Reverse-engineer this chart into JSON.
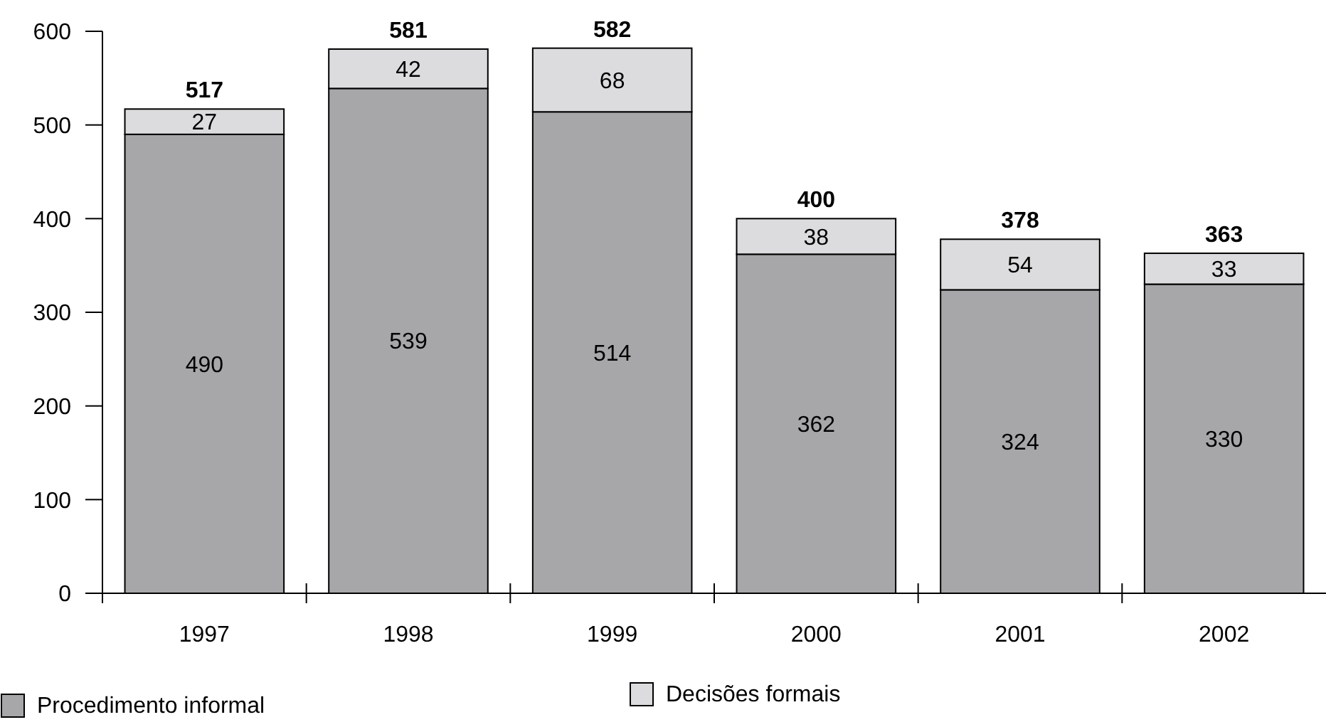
{
  "chart_data": {
    "type": "bar",
    "stacked": true,
    "categories": [
      "1997",
      "1998",
      "1999",
      "2000",
      "2001",
      "2002"
    ],
    "series": [
      {
        "name": "Procedimento informal",
        "color": "#a7a7aa",
        "values": [
          490,
          539,
          514,
          362,
          324,
          330
        ]
      },
      {
        "name": "Decisões formais",
        "color": "#dcdcde",
        "values": [
          27,
          42,
          68,
          38,
          54,
          33
        ]
      }
    ],
    "ylim": [
      0,
      600
    ],
    "yticks": [
      0,
      100,
      200,
      300,
      400,
      500,
      600
    ],
    "data_labels": true,
    "totals": [
      "517",
      "581",
      "582",
      "400",
      "378",
      "363"
    ],
    "legend": "bottom"
  }
}
